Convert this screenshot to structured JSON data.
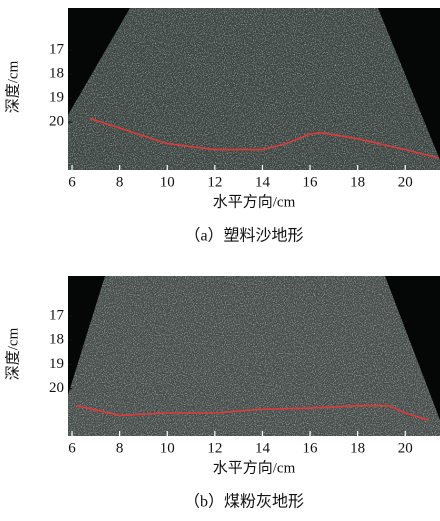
{
  "chart_data": [
    {
      "type": "line",
      "xlabel": "水平方向/cm",
      "ylabel": "深度/cm",
      "caption": "（a）塑料沙地形",
      "x": [
        6.75,
        8,
        10,
        12,
        14,
        15,
        16,
        16.5,
        18,
        20,
        21.4
      ],
      "series": [
        {
          "color": "#e03a3a",
          "values": [
            19.85,
            20.25,
            20.9,
            21.15,
            21.15,
            20.9,
            20.5,
            20.45,
            20.7,
            21.15,
            21.5
          ]
        }
      ],
      "xlim": [
        5.83,
        21.46
      ],
      "ylim": [
        22,
        15.25
      ],
      "xticks": [
        6,
        8,
        10,
        12,
        14,
        16,
        18,
        20
      ],
      "yticks": [
        17,
        18,
        19,
        20
      ]
    },
    {
      "type": "line",
      "xlabel": "水平方向/cm",
      "ylabel": "深度/cm",
      "caption": "（b）煤粉灰地形",
      "x": [
        6.2,
        8,
        10,
        12,
        14,
        16,
        18,
        19.3,
        20,
        21
      ],
      "series": [
        {
          "color": "#e03a3a",
          "values": [
            20.7,
            21.1,
            21.0,
            21.0,
            20.85,
            20.8,
            20.7,
            20.7,
            21.0,
            21.3
          ]
        }
      ],
      "xlim": [
        5.83,
        21.46
      ],
      "ylim": [
        21.95,
        15.35
      ],
      "xticks": [
        6,
        8,
        10,
        12,
        14,
        16,
        18,
        20
      ],
      "yticks": [
        17,
        18,
        19,
        20
      ]
    }
  ]
}
